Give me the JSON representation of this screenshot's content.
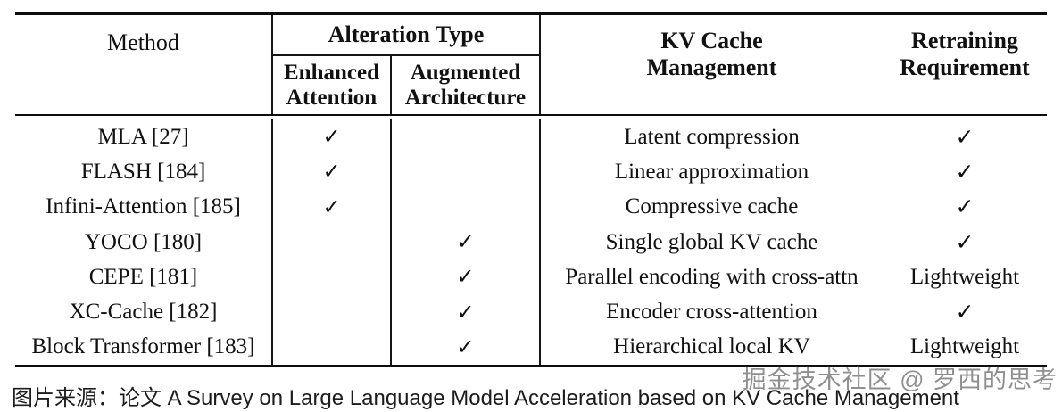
{
  "table": {
    "headers": {
      "method": "Method",
      "alteration_type": "Alteration Type",
      "enhanced_attention": "Enhanced Attention",
      "augmented_architecture": "Augmented Architecture",
      "kv_cache_management": "KV Cache Management",
      "retraining_requirement": "Retraining Requirement"
    },
    "rows": [
      {
        "method": "MLA [27]",
        "enhanced_attention": "✓",
        "augmented_architecture": "",
        "kv_cache_management": "Latent compression",
        "retraining_requirement": "✓"
      },
      {
        "method": "FLASH [184]",
        "enhanced_attention": "✓",
        "augmented_architecture": "",
        "kv_cache_management": "Linear approximation",
        "retraining_requirement": "✓"
      },
      {
        "method": "Infini-Attention [185]",
        "enhanced_attention": "✓",
        "augmented_architecture": "",
        "kv_cache_management": "Compressive cache",
        "retraining_requirement": "✓"
      },
      {
        "method": "YOCO [180]",
        "enhanced_attention": "",
        "augmented_architecture": "✓",
        "kv_cache_management": "Single global KV cache",
        "retraining_requirement": "✓"
      },
      {
        "method": "CEPE [181]",
        "enhanced_attention": "",
        "augmented_architecture": "✓",
        "kv_cache_management": "Parallel encoding with cross-attn",
        "retraining_requirement": "Lightweight"
      },
      {
        "method": "XC-Cache [182]",
        "enhanced_attention": "",
        "augmented_architecture": "✓",
        "kv_cache_management": "Encoder cross-attention",
        "retraining_requirement": "✓"
      },
      {
        "method": "Block Transformer [183]",
        "enhanced_attention": "",
        "augmented_architecture": "✓",
        "kv_cache_management": "Hierarchical local KV",
        "retraining_requirement": "Lightweight"
      }
    ]
  },
  "caption": {
    "text": "图片来源：论文 A Survey on Large Language Model Acceleration based on KV Cache Management"
  },
  "watermark": {
    "text": "掘金技术社区 @ 罗西的思考"
  },
  "colors": {
    "rule": "#0d0d0d",
    "text": "#111111",
    "watermark_gray": "#808080",
    "background": "#ffffff"
  }
}
